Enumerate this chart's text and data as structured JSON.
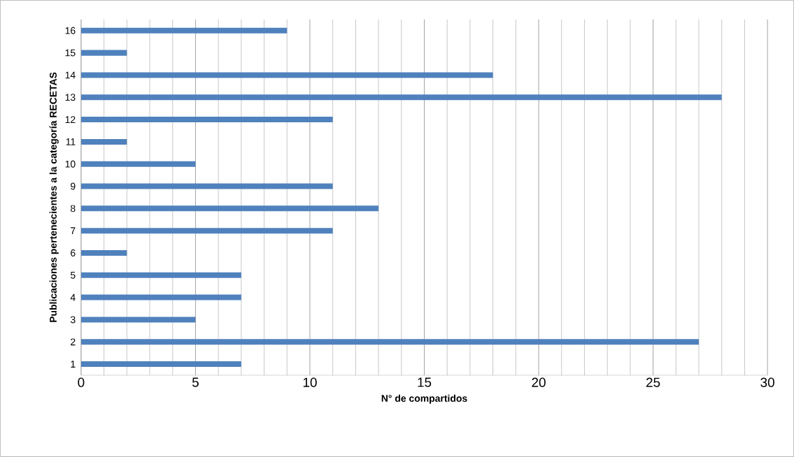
{
  "chart_data": {
    "type": "bar",
    "orientation": "horizontal",
    "xlabel": "N° de compartidos",
    "ylabel": "Publicaciones pertenecientes a la categoría RECETAS",
    "categories": [
      "16",
      "15",
      "14",
      "13",
      "12",
      "11",
      "10",
      "9",
      "8",
      "7",
      "6",
      "5",
      "4",
      "3",
      "2",
      "1"
    ],
    "values": [
      9,
      2,
      18,
      28,
      11,
      2,
      5,
      11,
      13,
      11,
      2,
      7,
      7,
      5,
      27,
      7
    ],
    "color": "#4f81bd",
    "xlim": [
      0,
      30
    ],
    "xticks": [
      0,
      5,
      10,
      15,
      20,
      25,
      30
    ],
    "grid": "x"
  }
}
